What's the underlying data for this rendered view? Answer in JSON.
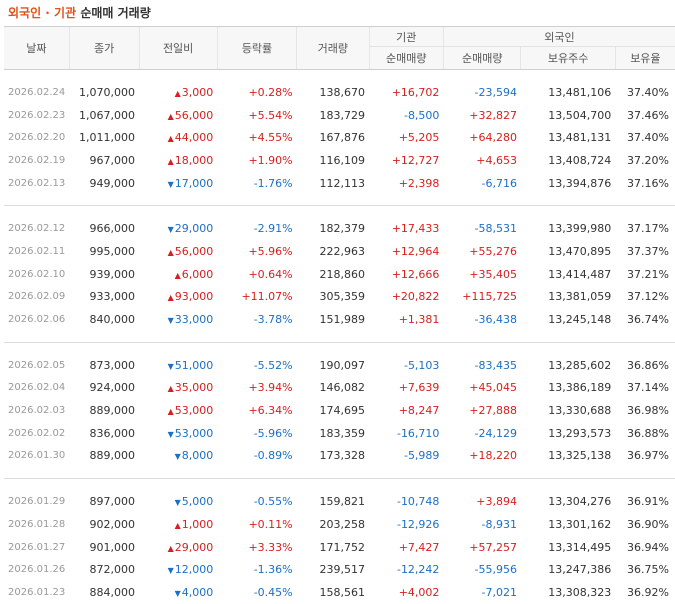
{
  "title": {
    "part1": "외국인 · 기관",
    "part2": "순매매 거래량"
  },
  "headers": {
    "date": "날짜",
    "close": "종가",
    "change": "전일비",
    "pct": "등락률",
    "volume": "거래량",
    "inst_group": "기관",
    "inst_net": "순매매량",
    "foreign_group": "외국인",
    "foreign_net": "순매매량",
    "foreign_hold": "보유주수",
    "foreign_ratio": "보유율"
  },
  "groups": [
    [
      {
        "date": "2026.02.24",
        "close": "1,070,000",
        "dir": "up",
        "change": "3,000",
        "pct": "+0.28%",
        "volume": "138,670",
        "inst": "+16,702",
        "foreign": "-23,594",
        "hold": "13,481,106",
        "ratio": "37.40%"
      },
      {
        "date": "2026.02.23",
        "close": "1,067,000",
        "dir": "up",
        "change": "56,000",
        "pct": "+5.54%",
        "volume": "183,729",
        "inst": "-8,500",
        "foreign": "+32,827",
        "hold": "13,504,700",
        "ratio": "37.46%"
      },
      {
        "date": "2026.02.20",
        "close": "1,011,000",
        "dir": "up",
        "change": "44,000",
        "pct": "+4.55%",
        "volume": "167,876",
        "inst": "+5,205",
        "foreign": "+64,280",
        "hold": "13,481,131",
        "ratio": "37.40%"
      },
      {
        "date": "2026.02.19",
        "close": "967,000",
        "dir": "up",
        "change": "18,000",
        "pct": "+1.90%",
        "volume": "116,109",
        "inst": "+12,727",
        "foreign": "+4,653",
        "hold": "13,408,724",
        "ratio": "37.20%"
      },
      {
        "date": "2026.02.13",
        "close": "949,000",
        "dir": "down",
        "change": "17,000",
        "pct": "-1.76%",
        "volume": "112,113",
        "inst": "+2,398",
        "foreign": "-6,716",
        "hold": "13,394,876",
        "ratio": "37.16%"
      }
    ],
    [
      {
        "date": "2026.02.12",
        "close": "966,000",
        "dir": "down",
        "change": "29,000",
        "pct": "-2.91%",
        "volume": "182,379",
        "inst": "+17,433",
        "foreign": "-58,531",
        "hold": "13,399,980",
        "ratio": "37.17%"
      },
      {
        "date": "2026.02.11",
        "close": "995,000",
        "dir": "up",
        "change": "56,000",
        "pct": "+5.96%",
        "volume": "222,963",
        "inst": "+12,964",
        "foreign": "+55,276",
        "hold": "13,470,895",
        "ratio": "37.37%"
      },
      {
        "date": "2026.02.10",
        "close": "939,000",
        "dir": "up",
        "change": "6,000",
        "pct": "+0.64%",
        "volume": "218,860",
        "inst": "+12,666",
        "foreign": "+35,405",
        "hold": "13,414,487",
        "ratio": "37.21%"
      },
      {
        "date": "2026.02.09",
        "close": "933,000",
        "dir": "up",
        "change": "93,000",
        "pct": "+11.07%",
        "volume": "305,359",
        "inst": "+20,822",
        "foreign": "+115,725",
        "hold": "13,381,059",
        "ratio": "37.12%"
      },
      {
        "date": "2026.02.06",
        "close": "840,000",
        "dir": "down",
        "change": "33,000",
        "pct": "-3.78%",
        "volume": "151,989",
        "inst": "+1,381",
        "foreign": "-36,438",
        "hold": "13,245,148",
        "ratio": "36.74%"
      }
    ],
    [
      {
        "date": "2026.02.05",
        "close": "873,000",
        "dir": "down",
        "change": "51,000",
        "pct": "-5.52%",
        "volume": "190,097",
        "inst": "-5,103",
        "foreign": "-83,435",
        "hold": "13,285,602",
        "ratio": "36.86%"
      },
      {
        "date": "2026.02.04",
        "close": "924,000",
        "dir": "up",
        "change": "35,000",
        "pct": "+3.94%",
        "volume": "146,082",
        "inst": "+7,639",
        "foreign": "+45,045",
        "hold": "13,386,189",
        "ratio": "37.14%"
      },
      {
        "date": "2026.02.03",
        "close": "889,000",
        "dir": "up",
        "change": "53,000",
        "pct": "+6.34%",
        "volume": "174,695",
        "inst": "+8,247",
        "foreign": "+27,888",
        "hold": "13,330,688",
        "ratio": "36.98%"
      },
      {
        "date": "2026.02.02",
        "close": "836,000",
        "dir": "down",
        "change": "53,000",
        "pct": "-5.96%",
        "volume": "183,359",
        "inst": "-16,710",
        "foreign": "-24,129",
        "hold": "13,293,573",
        "ratio": "36.88%"
      },
      {
        "date": "2026.01.30",
        "close": "889,000",
        "dir": "down",
        "change": "8,000",
        "pct": "-0.89%",
        "volume": "173,328",
        "inst": "-5,989",
        "foreign": "+18,220",
        "hold": "13,325,138",
        "ratio": "36.97%"
      }
    ],
    [
      {
        "date": "2026.01.29",
        "close": "897,000",
        "dir": "down",
        "change": "5,000",
        "pct": "-0.55%",
        "volume": "159,821",
        "inst": "-10,748",
        "foreign": "+3,894",
        "hold": "13,304,276",
        "ratio": "36.91%"
      },
      {
        "date": "2026.01.28",
        "close": "902,000",
        "dir": "up",
        "change": "1,000",
        "pct": "+0.11%",
        "volume": "203,258",
        "inst": "-12,926",
        "foreign": "-8,931",
        "hold": "13,301,162",
        "ratio": "36.90%"
      },
      {
        "date": "2026.01.27",
        "close": "901,000",
        "dir": "up",
        "change": "29,000",
        "pct": "+3.33%",
        "volume": "171,752",
        "inst": "+7,427",
        "foreign": "+57,257",
        "hold": "13,314,495",
        "ratio": "36.94%"
      },
      {
        "date": "2026.01.26",
        "close": "872,000",
        "dir": "down",
        "change": "12,000",
        "pct": "-1.36%",
        "volume": "239,517",
        "inst": "-12,242",
        "foreign": "-55,956",
        "hold": "13,247,386",
        "ratio": "36.75%"
      },
      {
        "date": "2026.01.23",
        "close": "884,000",
        "dir": "down",
        "change": "4,000",
        "pct": "-0.45%",
        "volume": "158,561",
        "inst": "+4,002",
        "foreign": "-7,021",
        "hold": "13,308,323",
        "ratio": "36.92%"
      }
    ]
  ],
  "colors": {
    "up": "#d81e1e",
    "down": "#1c6fc6",
    "title_accent": "#e0521b"
  },
  "icons": {
    "up": "up-triangle-icon",
    "down": "down-triangle-icon"
  }
}
